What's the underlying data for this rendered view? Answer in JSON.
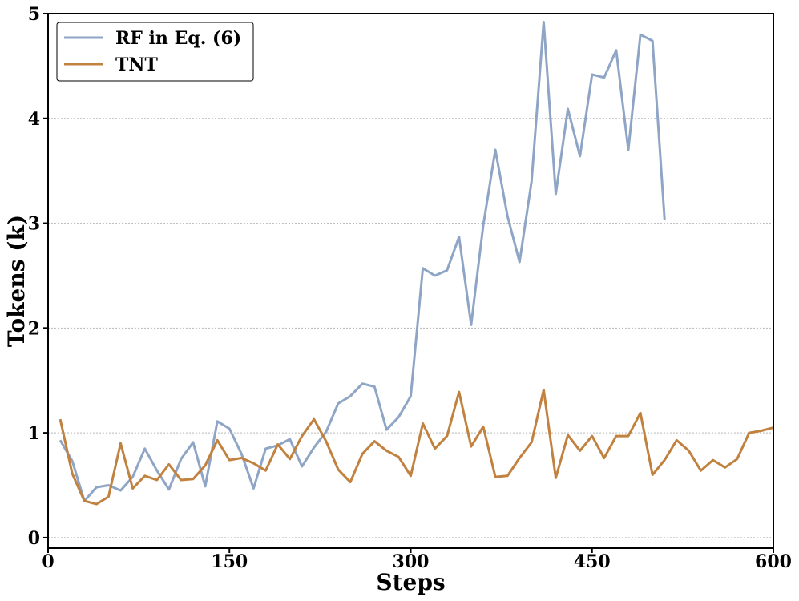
{
  "chart_data": {
    "type": "line",
    "title": "",
    "xlabel": "Steps",
    "ylabel": "Tokens (k)",
    "xlim": [
      0,
      600
    ],
    "ylim": [
      -0.1,
      5.0
    ],
    "xticks": [
      0,
      150,
      300,
      450,
      600
    ],
    "yticks": [
      0,
      1,
      2,
      3,
      4,
      5
    ],
    "grid": {
      "y": true,
      "x": false,
      "style": "dotted"
    },
    "legend": {
      "placement": "top-left"
    },
    "series": [
      {
        "name": "RF in Eq. (6)",
        "color": "#8fa5c6",
        "x": [
          10,
          20,
          30,
          40,
          50,
          60,
          70,
          80,
          90,
          100,
          110,
          120,
          130,
          140,
          150,
          160,
          170,
          180,
          190,
          200,
          210,
          220,
          230,
          240,
          250,
          260,
          270,
          280,
          290,
          300,
          310,
          320,
          330,
          340,
          350,
          360,
          370,
          380,
          390,
          400,
          410,
          420,
          430,
          440,
          450,
          460,
          470,
          480,
          490,
          500,
          510
        ],
        "y": [
          0.93,
          0.73,
          0.35,
          0.48,
          0.5,
          0.45,
          0.58,
          0.85,
          0.64,
          0.46,
          0.75,
          0.91,
          0.49,
          1.11,
          1.04,
          0.8,
          0.47,
          0.85,
          0.88,
          0.94,
          0.68,
          0.86,
          1.01,
          1.28,
          1.35,
          1.47,
          1.44,
          1.03,
          1.15,
          1.35,
          2.57,
          2.5,
          2.55,
          2.87,
          2.03,
          2.98,
          3.7,
          3.07,
          2.63,
          3.4,
          4.92,
          3.28,
          4.09,
          3.64,
          4.42,
          4.39,
          4.65,
          3.7,
          4.8,
          4.74,
          3.03
        ]
      },
      {
        "name": "TNT",
        "color": "#c1813f",
        "x": [
          10,
          20,
          30,
          40,
          50,
          60,
          70,
          80,
          90,
          100,
          110,
          120,
          130,
          140,
          150,
          160,
          170,
          180,
          190,
          200,
          210,
          220,
          230,
          240,
          250,
          260,
          270,
          280,
          290,
          300,
          310,
          320,
          330,
          340,
          350,
          360,
          370,
          380,
          390,
          400,
          410,
          420,
          430,
          440,
          450,
          460,
          470,
          480,
          490,
          500,
          510,
          520,
          530,
          540,
          550,
          560,
          570,
          580,
          590,
          600
        ],
        "y": [
          1.13,
          0.61,
          0.35,
          0.32,
          0.39,
          0.9,
          0.47,
          0.59,
          0.55,
          0.7,
          0.55,
          0.56,
          0.69,
          0.93,
          0.74,
          0.76,
          0.71,
          0.64,
          0.89,
          0.75,
          0.97,
          1.13,
          0.92,
          0.65,
          0.53,
          0.8,
          0.92,
          0.83,
          0.77,
          0.59,
          1.09,
          0.85,
          0.97,
          1.39,
          0.87,
          1.06,
          0.58,
          0.59,
          0.76,
          0.91,
          1.41,
          0.57,
          0.98,
          0.83,
          0.97,
          0.76,
          0.97,
          0.97,
          1.19,
          0.6,
          0.74,
          0.93,
          0.83,
          0.64,
          0.74,
          0.67,
          0.75,
          1.0,
          1.02,
          1.05
        ]
      }
    ]
  }
}
